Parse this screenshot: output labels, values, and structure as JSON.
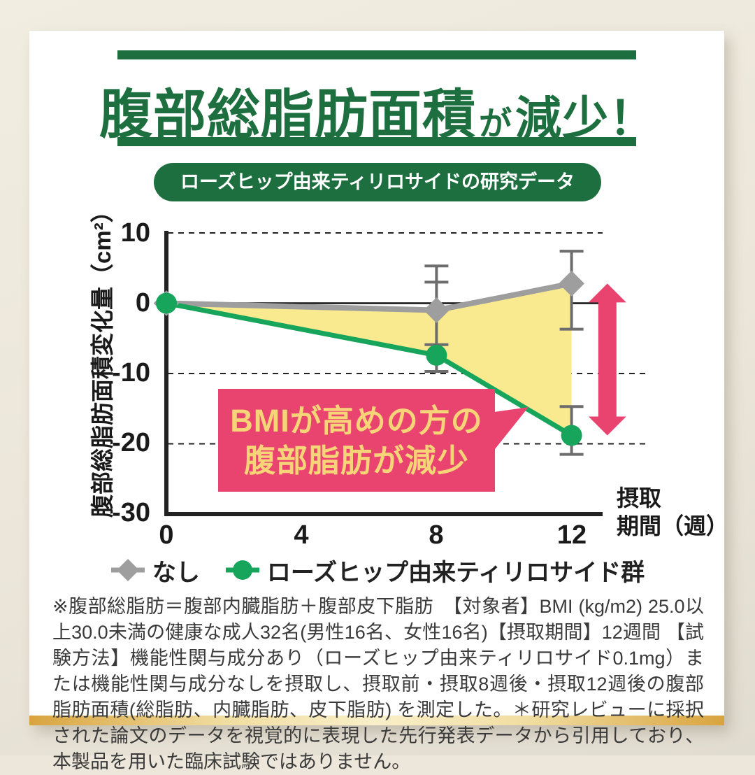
{
  "palette": {
    "dark_green": "#1e6f3f",
    "line_green": "#17a55c",
    "gray_series": "#9e9e9e",
    "error_bar_gray": "#6d6d6d",
    "pink": "#e8446f",
    "callout_text_yellow": "#f8d478",
    "fill_yellow": "#f9e98f",
    "gold_bar": "#d9a43f"
  },
  "title": {
    "main": "腹部総脂肪面積",
    "connector": "が",
    "emphasis": "減少！"
  },
  "badge": {
    "label": "ローズヒップ由来ティリロサイドの研究データ"
  },
  "chart_data": {
    "type": "line",
    "title": "ローズヒップ由来ティリロサイドの研究データ",
    "x": [
      0,
      8,
      12
    ],
    "x_ticks": [
      "0",
      "4",
      "8",
      "12"
    ],
    "y_ticks": [
      "10",
      "0",
      "-10",
      "-20",
      "-30"
    ],
    "xlim": [
      0,
      12
    ],
    "ylim": [
      -30,
      10
    ],
    "xlabel": "摂取期間（週）",
    "xlabel_lines": [
      "摂取",
      "期間（週）"
    ],
    "ylabel": "腹部総脂肪面積変化量（cm²）",
    "grid": "dashed horizontal lines at 10, -10, -20; thin solid zero line; no vertical grid",
    "legend_position": "bottom",
    "series": [
      {
        "name": "なし",
        "marker": "diamond",
        "color": "#9e9e9e",
        "values": [
          0,
          -1,
          2.8
        ]
      },
      {
        "name": "ローズヒップ由来ティリロサイド群",
        "marker": "circle",
        "color": "#17a55c",
        "values": [
          0,
          -7.4,
          -18.8
        ]
      }
    ],
    "fill_between_color": "#f9e98f",
    "error_bar_color": "#6d6d6d",
    "error_bars": [
      {
        "week": 8,
        "span": [
          5.3,
          -9.7
        ],
        "caps": [
          5.3,
          3.0,
          -5.9,
          -9.7
        ]
      },
      {
        "week": 12,
        "span": [
          7.4,
          -3.7
        ],
        "caps": [
          7.4,
          -3.7
        ]
      },
      {
        "week": 12,
        "span": [
          -14.7,
          -21.5
        ],
        "caps": [
          -14.7,
          -21.5
        ]
      }
    ],
    "annotation": {
      "lines": [
        "BMIが高めの方の",
        "腹部脂肪が減少"
      ],
      "bg": "#e8446f",
      "fg": "#f8d478"
    },
    "annotation_arrow": {
      "x_week": 13.06,
      "top_value": 2.8,
      "bottom_value": -18.8,
      "color": "#e8446f"
    }
  },
  "footnote": "※腹部総脂肪＝腹部内臓脂肪＋腹部皮下脂肪　【対象者】BMI (kg/m2) 25.0以上30.0未満の健康な成人32名(男性16名、女性16名)【摂取期間】12週間 【試験方法】機能性関与成分あり（ローズヒップ由来ティリロサイド0.1mg）または機能性関与成分なしを摂取し、摂取前・摂取8週後・摂取12週後の腹部脂肪面積(総脂肪、内臓脂肪、皮下脂肪) を測定した。＊研究レビューに採択された論文のデータを視覚的に表現した先行発表データから引用しており、本製品を用いた臨床試験ではありません。"
}
